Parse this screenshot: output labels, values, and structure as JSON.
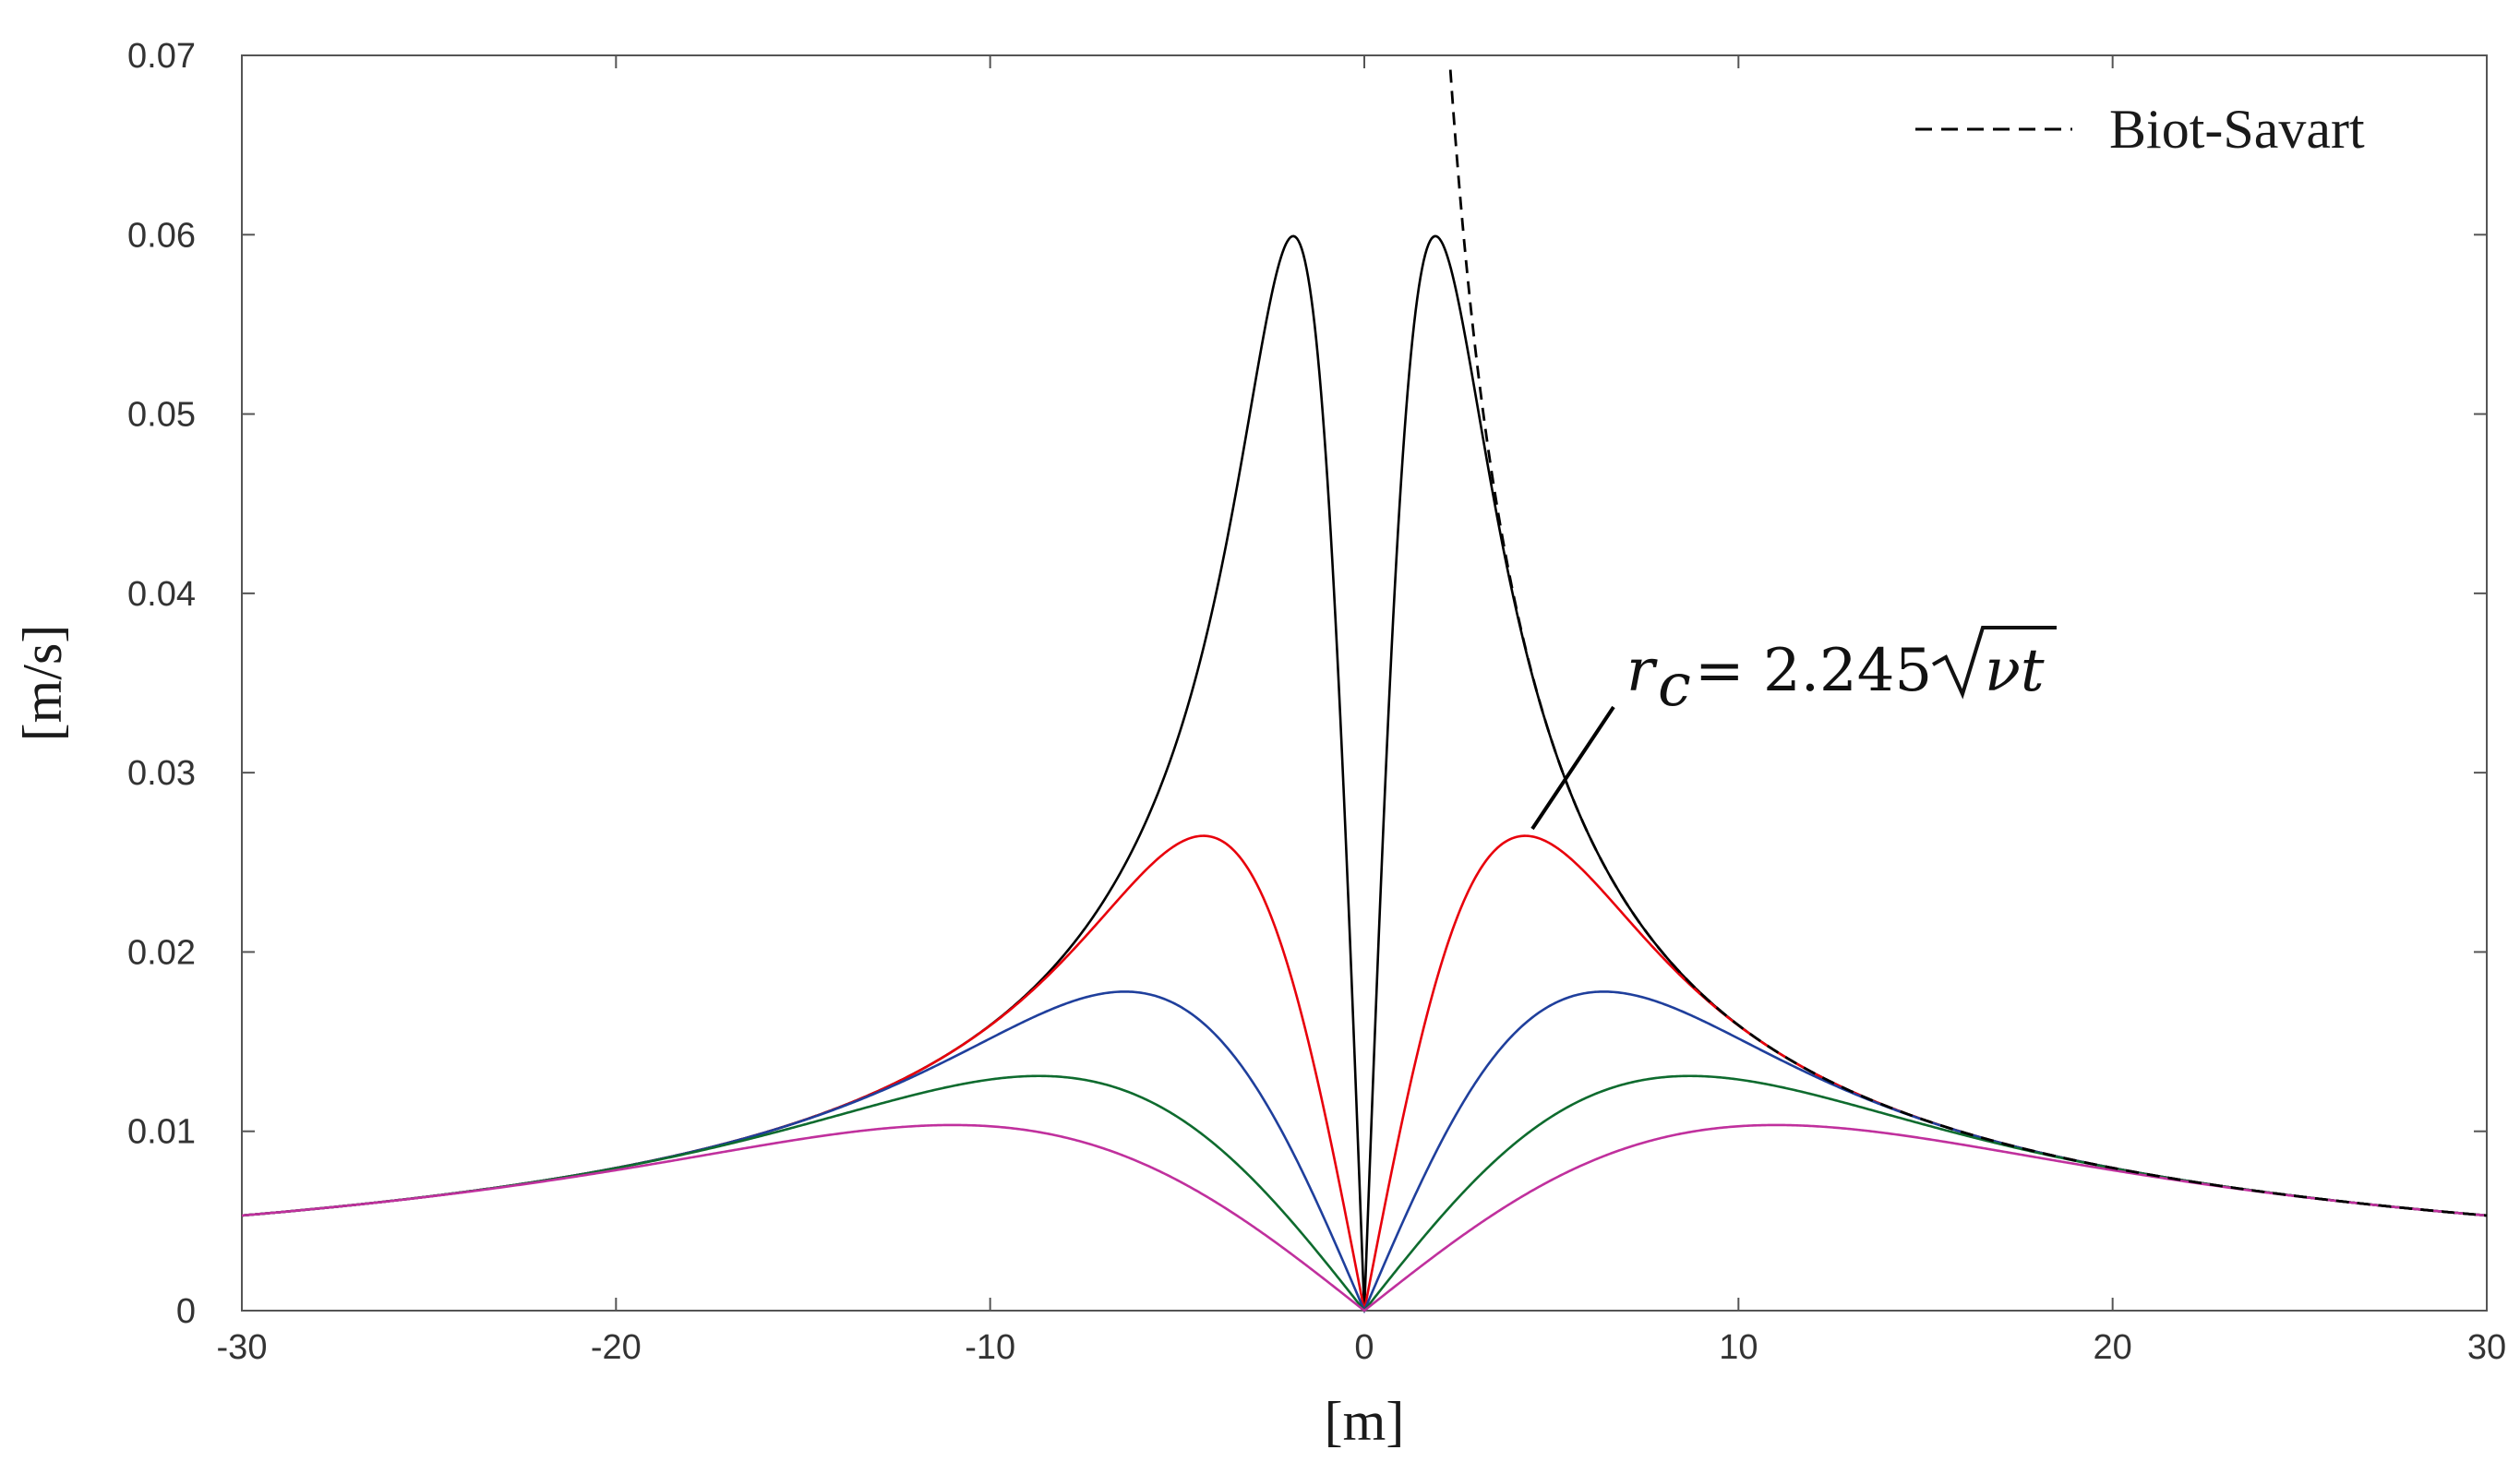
{
  "chart_data": {
    "type": "line",
    "xlabel": "[m]",
    "ylabel": "[m/s]",
    "xlim": [
      -30,
      30
    ],
    "ylim": [
      0,
      0.07
    ],
    "x_ticks": [
      -30,
      -20,
      -10,
      0,
      10,
      20,
      30
    ],
    "y_ticks": [
      0,
      0.01,
      0.02,
      0.03,
      0.04,
      0.05,
      0.06,
      0.07
    ],
    "x_tick_labels": [
      "-30",
      "-20",
      "-10",
      "0",
      "10",
      "20",
      "30"
    ],
    "y_tick_labels": [
      "0",
      "0.01",
      "0.02",
      "0.03",
      "0.04",
      "0.05",
      "0.06",
      "0.07"
    ],
    "grid": false,
    "legend": {
      "position": "top-right",
      "entries": [
        "Biot-Savart"
      ]
    },
    "annotation": {
      "lhs": "r",
      "subscript": "c",
      "rhs": "= 2.245",
      "radicand": "νt"
    },
    "circulation": 1.0,
    "series": [
      {
        "color": "#000000",
        "dash": "solid",
        "core_radius": 1.9
      },
      {
        "color": "#e8000b",
        "dash": "solid",
        "core_radius": 4.3
      },
      {
        "color": "#1f3f9c",
        "dash": "solid",
        "core_radius": 6.4
      },
      {
        "color": "#0e6b2e",
        "dash": "solid",
        "core_radius": 8.7
      },
      {
        "color": "#c0309d",
        "dash": "solid",
        "core_radius": 11.0
      },
      {
        "name": "Biot-Savart",
        "color": "#000000",
        "dash": "dashed",
        "core_radius": 0,
        "x_range": [
          2.3,
          30
        ]
      }
    ]
  }
}
